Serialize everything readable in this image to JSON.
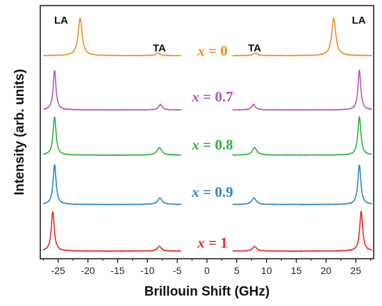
{
  "chart_data": {
    "type": "line",
    "title": "",
    "xlabel": "Brillouin Shift (GHz)",
    "ylabel": "Intensity (arb. units)",
    "xlim": [
      -28,
      28
    ],
    "x_ticks": [
      -25,
      -20,
      -15,
      -10,
      -5,
      0,
      5,
      10,
      15,
      20,
      25
    ],
    "x_gap": [
      -4.3,
      4.3
    ],
    "y_ticks_shown": false,
    "peak_labels": [
      {
        "text": "LA",
        "x": -24.5,
        "series": "x = 0"
      },
      {
        "text": "TA",
        "x": -8.0,
        "series": "x = 0"
      },
      {
        "text": "TA",
        "x": 8.0,
        "series": "x = 0"
      },
      {
        "text": "LA",
        "x": 25.5,
        "series": "x = 0"
      }
    ],
    "series": [
      {
        "name": "x = 0",
        "var": "x",
        "value": "0",
        "color": "#f28a1d",
        "LA": {
          "pos": 21.3,
          "height": 0.9,
          "width": 0.4
        },
        "TA": {
          "pos": 8.2,
          "height": 0.06,
          "width": 0.45
        }
      },
      {
        "name": "x = 0.7",
        "var": "x",
        "value": "0.7",
        "color": "#b455b9",
        "LA": {
          "pos": 25.6,
          "height": 0.92,
          "width": 0.28
        },
        "TA": {
          "pos": 7.8,
          "height": 0.13,
          "width": 0.35
        }
      },
      {
        "name": "x = 0.8",
        "var": "x",
        "value": "0.8",
        "color": "#2eae3f",
        "LA": {
          "pos": 25.6,
          "height": 0.92,
          "width": 0.3
        },
        "TA": {
          "pos": 8.0,
          "height": 0.18,
          "width": 0.45
        }
      },
      {
        "name": "x = 0.9",
        "var": "x",
        "value": "0.9",
        "color": "#2b84c6",
        "LA": {
          "pos": 25.6,
          "height": 0.92,
          "width": 0.3
        },
        "TA": {
          "pos": 7.9,
          "height": 0.15,
          "width": 0.45
        }
      },
      {
        "name": "x = 1",
        "var": "x",
        "value": "1",
        "color": "#e8252a",
        "LA": {
          "pos": 25.9,
          "height": 0.92,
          "width": 0.3
        },
        "TA": {
          "pos": 8.0,
          "height": 0.11,
          "width": 0.4
        }
      }
    ]
  }
}
